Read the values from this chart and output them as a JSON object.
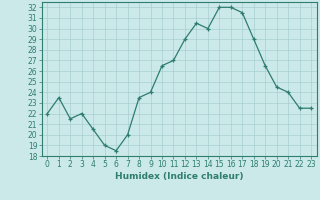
{
  "xlabel": "Humidex (Indice chaleur)",
  "ylabel": "",
  "x": [
    0,
    1,
    2,
    3,
    4,
    5,
    6,
    7,
    8,
    9,
    10,
    11,
    12,
    13,
    14,
    15,
    16,
    17,
    18,
    19,
    20,
    21,
    22,
    23
  ],
  "y": [
    22,
    23.5,
    21.5,
    22,
    20.5,
    19,
    18.5,
    20,
    23.5,
    24,
    26.5,
    27,
    29,
    30.5,
    30,
    32,
    32,
    31.5,
    29,
    26.5,
    24.5,
    24,
    22.5,
    22.5
  ],
  "ylim": [
    18,
    32.5
  ],
  "yticks": [
    18,
    19,
    20,
    21,
    22,
    23,
    24,
    25,
    26,
    27,
    28,
    29,
    30,
    31,
    32
  ],
  "line_color": "#2e7d6e",
  "bg_color": "#cce9ea",
  "grid_color": "#a0c8cc",
  "label_fontsize": 6.5,
  "tick_fontsize": 5.5
}
